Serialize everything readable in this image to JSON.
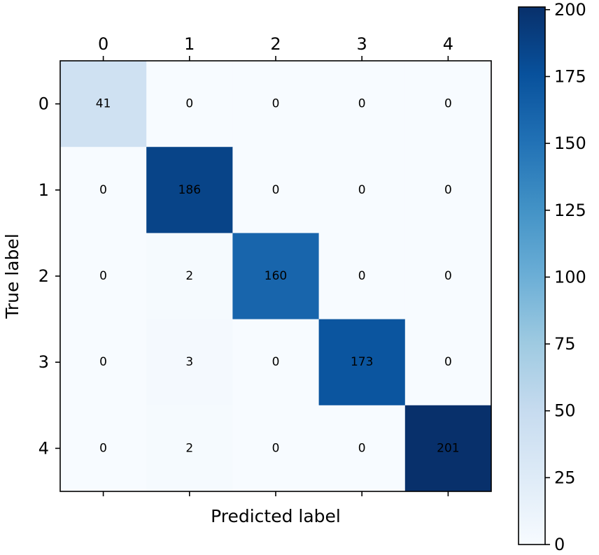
{
  "chart_data": {
    "type": "heatmap",
    "title": "",
    "xlabel": "Predicted label",
    "ylabel": "True label",
    "x_categories": [
      "0",
      "1",
      "2",
      "3",
      "4"
    ],
    "y_categories": [
      "0",
      "1",
      "2",
      "3",
      "4"
    ],
    "matrix": [
      [
        41,
        0,
        0,
        0,
        0
      ],
      [
        0,
        186,
        0,
        0,
        0
      ],
      [
        0,
        2,
        160,
        0,
        0
      ],
      [
        0,
        3,
        0,
        173,
        0
      ],
      [
        0,
        2,
        0,
        0,
        201
      ]
    ],
    "x_tick_position": "top-and-bottom",
    "x_tick_labels_position": "top",
    "colormap": "Blues",
    "colormap_stops": [
      "#f7fbff",
      "#deebf7",
      "#c6dbef",
      "#9ecae1",
      "#6baed6",
      "#4292c6",
      "#2171b5",
      "#08519c",
      "#08306b"
    ],
    "colorbar": {
      "range": [
        0,
        201
      ],
      "ticks": [
        0,
        25,
        50,
        75,
        100,
        125,
        150,
        175,
        200
      ],
      "position": "right"
    },
    "grid": false
  }
}
